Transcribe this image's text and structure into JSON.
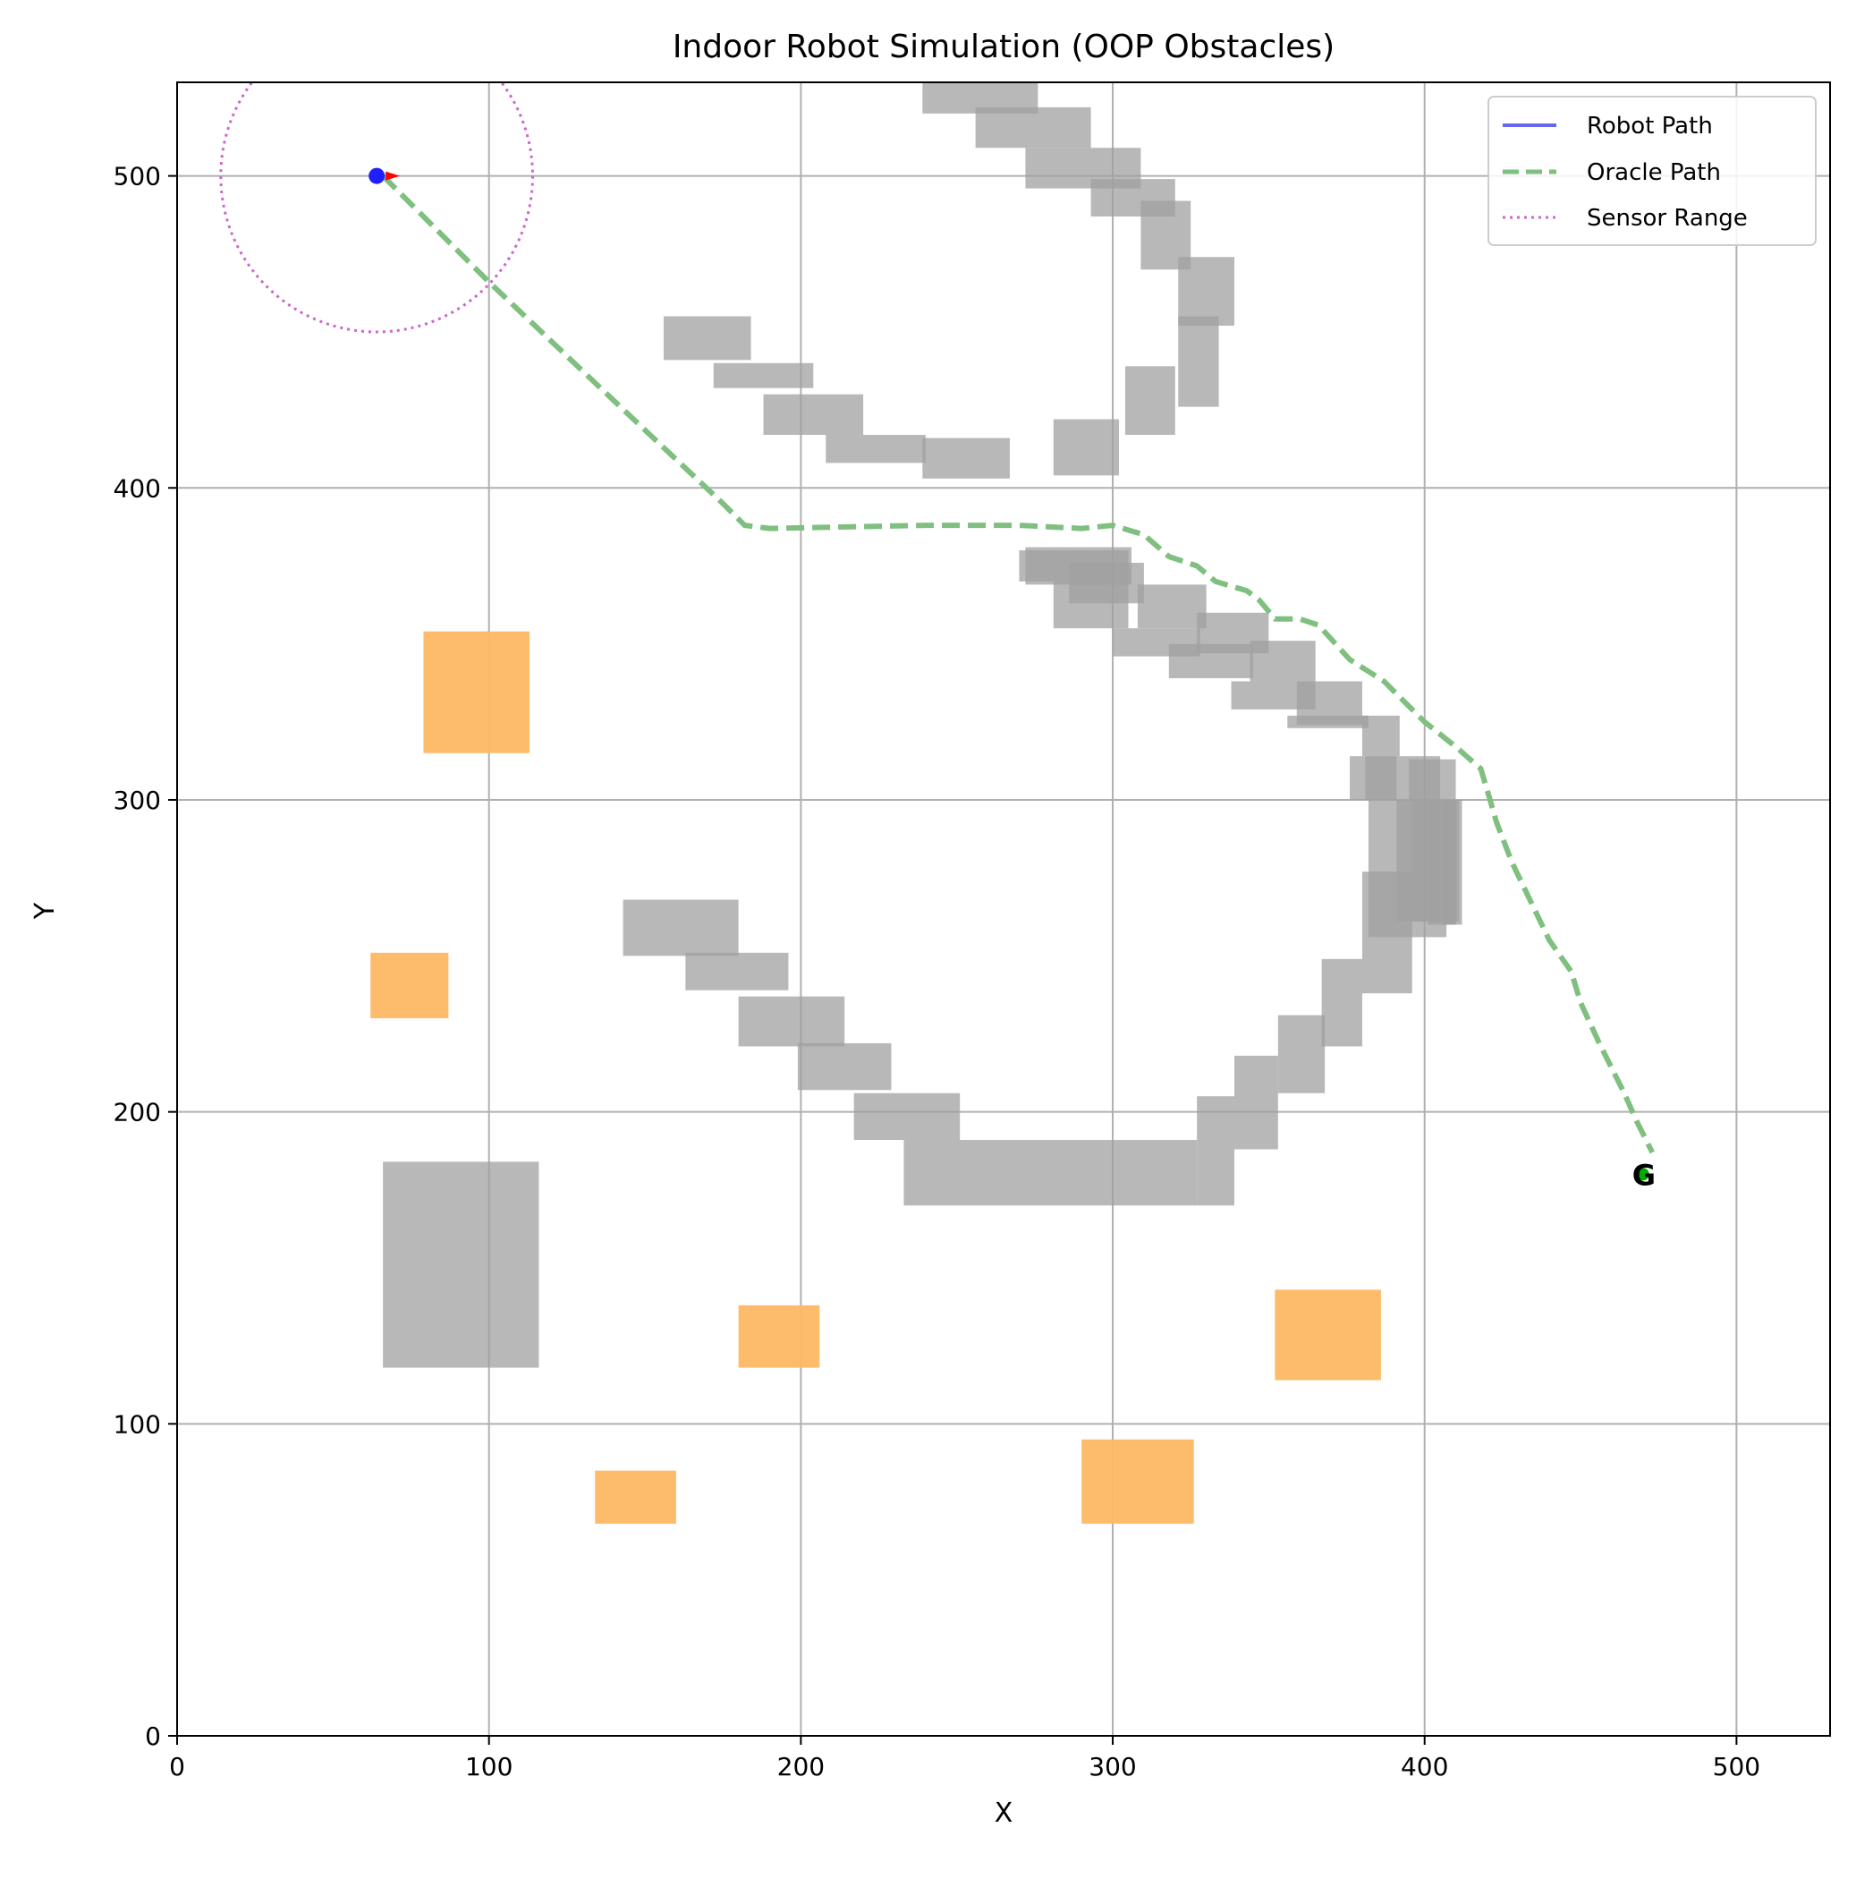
{
  "chart_data": {
    "type": "line",
    "title": "Indoor Robot Simulation (OOP Obstacles)",
    "xlabel": "X",
    "ylabel": "Y",
    "xlim": [
      0,
      530
    ],
    "ylim": [
      0,
      530
    ],
    "xticks": [
      0,
      100,
      200,
      300,
      400,
      500
    ],
    "yticks": [
      0,
      100,
      200,
      300,
      400,
      500
    ],
    "grid": true,
    "legend": {
      "placement": "top-right",
      "entries": [
        {
          "label": "Robot Path",
          "style": "solid",
          "color": "#6666ee"
        },
        {
          "label": "Oracle Path",
          "style": "dashed",
          "color": "#7fbf7f"
        },
        {
          "label": "Sensor Range",
          "style": "dotted",
          "color": "#cc66cc"
        }
      ]
    },
    "robot": {
      "x": 64,
      "y": 500,
      "heading_deg": 0,
      "sensor_radius": 50,
      "color": "#1f1fff",
      "heading_color": "#ff0000"
    },
    "goal": {
      "x": 470,
      "y": 180,
      "label": "G",
      "color": "#00aa00"
    },
    "robot_path": [
      [
        64,
        500
      ]
    ],
    "oracle_path": [
      [
        66,
        500
      ],
      [
        100,
        466
      ],
      [
        140,
        428
      ],
      [
        175,
        395
      ],
      [
        182,
        388
      ],
      [
        190,
        387
      ],
      [
        240,
        388
      ],
      [
        270,
        388
      ],
      [
        290,
        387
      ],
      [
        300,
        388
      ],
      [
        310,
        385
      ],
      [
        318,
        378
      ],
      [
        327,
        375
      ],
      [
        333,
        370
      ],
      [
        343,
        367
      ],
      [
        347,
        364
      ],
      [
        352,
        358
      ],
      [
        360,
        358
      ],
      [
        366,
        356
      ],
      [
        376,
        345
      ],
      [
        387,
        338
      ],
      [
        400,
        325
      ],
      [
        410,
        317
      ],
      [
        418,
        310
      ],
      [
        421,
        300
      ],
      [
        423,
        293
      ],
      [
        428,
        280
      ],
      [
        440,
        255
      ],
      [
        447,
        245
      ],
      [
        450,
        235
      ],
      [
        456,
        222
      ],
      [
        464,
        206
      ],
      [
        468,
        197
      ],
      [
        473,
        187
      ]
    ],
    "static_obstacles": [
      [
        66,
        118,
        116,
        184
      ],
      [
        239,
        520,
        276,
        530
      ],
      [
        256,
        509,
        293,
        522
      ],
      [
        272,
        496,
        309,
        509
      ],
      [
        293,
        487,
        320,
        499
      ],
      [
        309,
        470,
        325,
        492
      ],
      [
        321,
        452,
        339,
        474
      ],
      [
        321,
        426,
        334,
        455
      ],
      [
        304,
        417,
        320,
        439
      ],
      [
        281,
        404,
        302,
        422
      ],
      [
        239,
        403,
        267,
        416
      ],
      [
        208,
        408,
        240,
        417
      ],
      [
        188,
        417,
        220,
        430
      ],
      [
        172,
        432,
        204,
        440
      ],
      [
        156,
        441,
        184,
        455
      ],
      [
        406,
        260,
        410,
        300
      ],
      [
        406,
        260,
        410,
        300
      ],
      [
        391,
        261,
        405,
        300
      ],
      [
        381,
        300,
        405,
        314
      ],
      [
        376,
        300,
        391,
        314
      ],
      [
        356,
        323,
        382,
        327
      ],
      [
        338,
        329,
        365,
        338
      ],
      [
        318,
        339,
        345,
        350
      ],
      [
        300,
        346,
        328,
        355
      ],
      [
        281,
        355,
        305,
        370
      ],
      [
        270,
        370,
        305,
        380
      ],
      [
        382,
        256,
        407,
        300
      ],
      [
        401,
        260,
        412,
        300
      ],
      [
        143,
        250,
        180,
        268
      ],
      [
        163,
        239,
        196,
        251
      ],
      [
        180,
        221,
        214,
        237
      ],
      [
        199,
        207,
        229,
        222
      ],
      [
        217,
        191,
        251,
        206
      ],
      [
        233,
        170,
        327,
        191
      ],
      [
        327,
        170,
        339,
        205
      ],
      [
        339,
        188,
        353,
        218
      ],
      [
        353,
        206,
        368,
        231
      ],
      [
        367,
        221,
        380,
        249
      ],
      [
        380,
        238,
        396,
        277
      ],
      [
        396,
        261,
        411,
        300
      ],
      [
        395,
        300,
        410,
        313
      ],
      [
        380,
        314,
        392,
        327
      ],
      [
        359,
        324,
        380,
        338
      ],
      [
        344,
        338,
        365,
        351
      ],
      [
        327,
        347,
        350,
        360
      ],
      [
        308,
        355,
        330,
        369
      ],
      [
        286,
        363,
        310,
        376
      ],
      [
        272,
        369,
        306,
        381
      ]
    ],
    "dynamic_obstacles": [
      [
        79,
        315,
        113,
        354
      ],
      [
        62,
        230,
        87,
        251
      ],
      [
        180,
        118,
        206,
        138
      ],
      [
        134,
        68,
        160,
        85
      ],
      [
        290,
        68,
        326,
        95
      ],
      [
        352,
        114,
        386,
        143
      ]
    ],
    "static_color": "#a0a0a0",
    "dynamic_color": "#fdb863"
  }
}
